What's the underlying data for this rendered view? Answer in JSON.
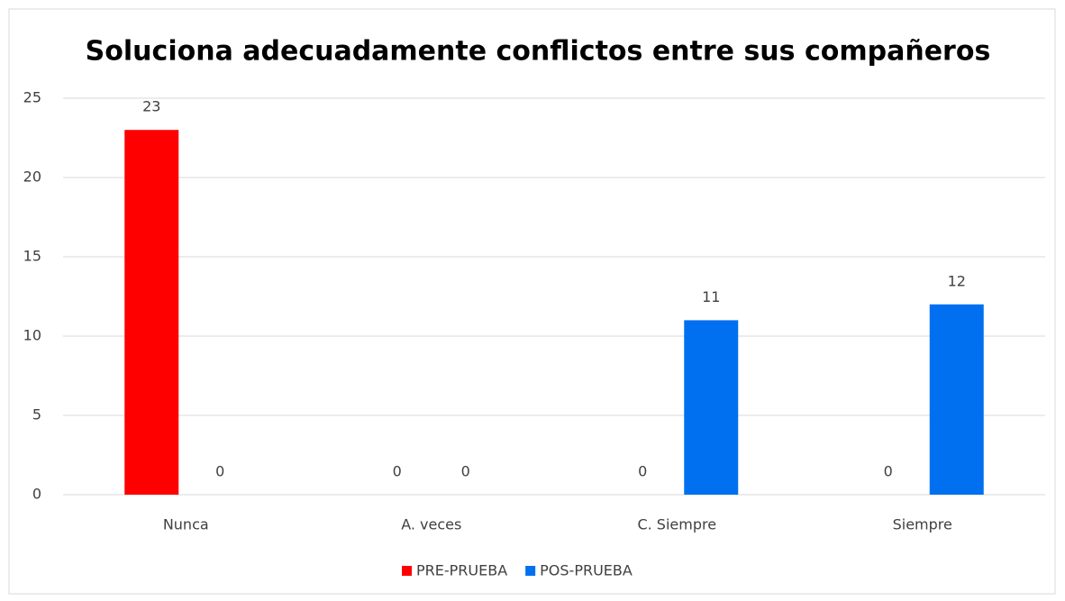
{
  "chart_data": {
    "type": "bar",
    "title": "Soluciona adecuadamente conflictos entre sus compañeros",
    "categories": [
      "Nunca",
      "A. veces",
      "C. Siempre",
      "Siempre"
    ],
    "series": [
      {
        "name": "PRE-PRUEBA",
        "color": "#ff0000",
        "values": [
          23,
          0,
          0,
          0
        ]
      },
      {
        "name": "POS-PRUEBA",
        "color": "#0070f0",
        "values": [
          0,
          0,
          11,
          12
        ]
      }
    ],
    "ylim": [
      0,
      25
    ],
    "yticks": [
      0,
      5,
      10,
      15,
      20,
      25
    ],
    "grid": true,
    "legend": "bottom",
    "data_labels": true
  }
}
